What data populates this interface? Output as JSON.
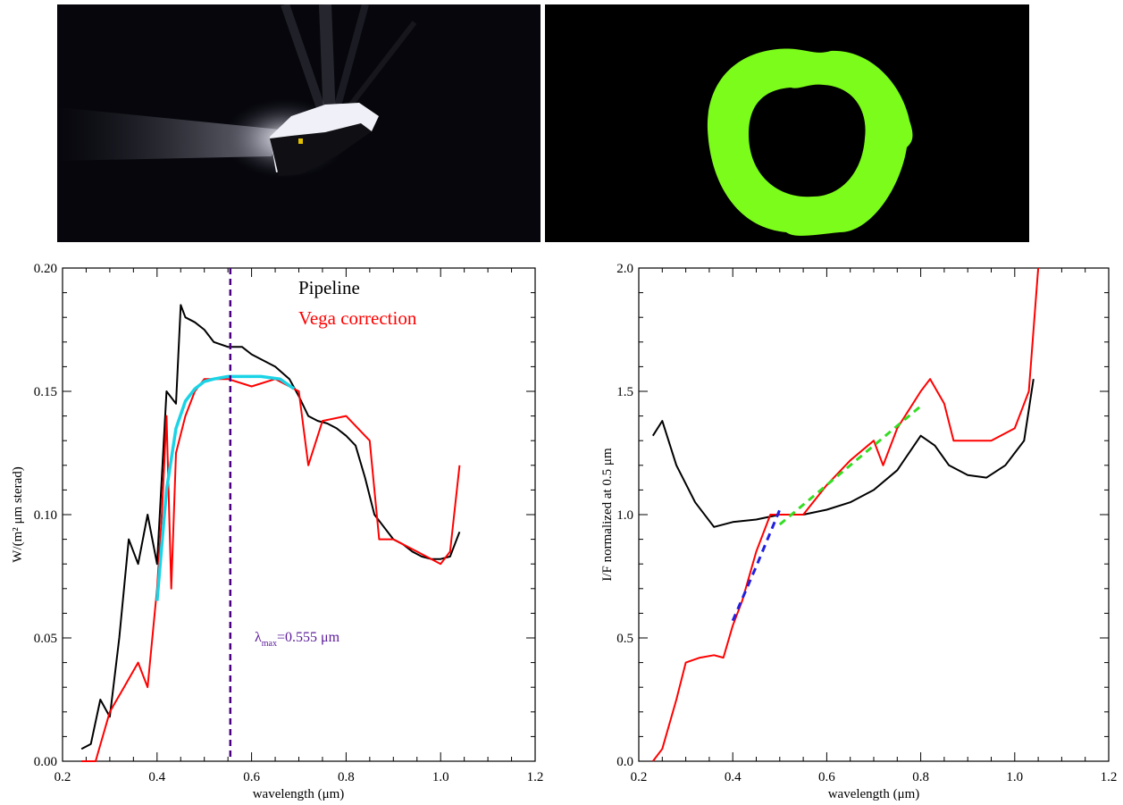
{
  "images": {
    "left_desc": "comet-nucleus-image",
    "right_desc": "annulus-mask-image",
    "mask_color": "#7cfc1a"
  },
  "chart_data": [
    {
      "type": "line",
      "xlabel": "wavelength (μm)",
      "ylabel": "W/(m² μm sterad)",
      "xlim": [
        0.2,
        1.2
      ],
      "ylim": [
        0.0,
        0.2
      ],
      "xticks": [
        0.2,
        0.4,
        0.6,
        0.8,
        1.0,
        1.2
      ],
      "xtick_labels": [
        "0.2",
        "0.4",
        "0.6",
        "0.8",
        "1.0",
        "1.2"
      ],
      "yticks": [
        0.0,
        0.05,
        0.1,
        0.15,
        0.2
      ],
      "ytick_labels": [
        "0.00",
        "0.05",
        "0.10",
        "0.15",
        "0.20"
      ],
      "legend_position": "top-right",
      "series": [
        {
          "name": "Pipeline",
          "color": "#000000",
          "x": [
            0.24,
            0.26,
            0.28,
            0.3,
            0.32,
            0.34,
            0.36,
            0.38,
            0.4,
            0.42,
            0.44,
            0.45,
            0.46,
            0.48,
            0.5,
            0.52,
            0.55,
            0.58,
            0.6,
            0.62,
            0.65,
            0.68,
            0.7,
            0.72,
            0.74,
            0.76,
            0.78,
            0.8,
            0.82,
            0.84,
            0.86,
            0.88,
            0.9,
            0.92,
            0.94,
            0.96,
            0.98,
            1.0,
            1.02,
            1.04
          ],
          "y": [
            0.005,
            0.007,
            0.025,
            0.018,
            0.05,
            0.09,
            0.08,
            0.1,
            0.08,
            0.15,
            0.145,
            0.185,
            0.18,
            0.178,
            0.175,
            0.17,
            0.168,
            0.168,
            0.165,
            0.163,
            0.16,
            0.155,
            0.148,
            0.14,
            0.138,
            0.137,
            0.135,
            0.132,
            0.128,
            0.115,
            0.1,
            0.095,
            0.09,
            0.088,
            0.085,
            0.083,
            0.082,
            0.082,
            0.083,
            0.093
          ]
        },
        {
          "name": "Vega correction",
          "color": "#ff0000",
          "x": [
            0.24,
            0.27,
            0.3,
            0.33,
            0.36,
            0.38,
            0.4,
            0.41,
            0.42,
            0.43,
            0.44,
            0.46,
            0.48,
            0.5,
            0.55,
            0.6,
            0.65,
            0.7,
            0.72,
            0.75,
            0.8,
            0.85,
            0.87,
            0.9,
            0.95,
            1.0,
            1.02,
            1.04
          ],
          "y": [
            0.0,
            0.0,
            0.02,
            0.03,
            0.04,
            0.03,
            0.07,
            0.1,
            0.14,
            0.07,
            0.125,
            0.14,
            0.15,
            0.155,
            0.155,
            0.152,
            0.155,
            0.15,
            0.12,
            0.138,
            0.14,
            0.13,
            0.09,
            0.09,
            0.085,
            0.08,
            0.085,
            0.12
          ]
        },
        {
          "name": "",
          "color": "#1ad4e6",
          "x": [
            0.4,
            0.42,
            0.44,
            0.46,
            0.48,
            0.5,
            0.52,
            0.55,
            0.58,
            0.62,
            0.66,
            0.69
          ],
          "y": [
            0.065,
            0.11,
            0.135,
            0.146,
            0.151,
            0.154,
            0.155,
            0.156,
            0.156,
            0.156,
            0.155,
            0.151
          ]
        }
      ],
      "vline": {
        "x": 0.555,
        "color": "#4b0082"
      },
      "annotation": {
        "lambda": "λ",
        "sub": "max",
        "rest": "=0.555 μm",
        "color": "#5b1a9a"
      }
    },
    {
      "type": "line",
      "xlabel": "wavelength (μm)",
      "ylabel": "I/F normalized at 0.5 μm",
      "xlim": [
        0.2,
        1.2
      ],
      "ylim": [
        0.0,
        2.0
      ],
      "xticks": [
        0.2,
        0.4,
        0.6,
        0.8,
        1.0,
        1.2
      ],
      "xtick_labels": [
        "0.2",
        "0.4",
        "0.6",
        "0.8",
        "1.0",
        "1.2"
      ],
      "yticks": [
        0.0,
        0.5,
        1.0,
        1.5,
        2.0
      ],
      "ytick_labels": [
        "0.0",
        "0.5",
        "1.0",
        "1.5",
        "2.0"
      ],
      "series": [
        {
          "name": "",
          "color": "#000000",
          "x": [
            0.23,
            0.25,
            0.28,
            0.32,
            0.36,
            0.4,
            0.45,
            0.5,
            0.55,
            0.6,
            0.65,
            0.7,
            0.75,
            0.8,
            0.83,
            0.86,
            0.9,
            0.94,
            0.98,
            1.02,
            1.04
          ],
          "y": [
            1.32,
            1.38,
            1.2,
            1.05,
            0.95,
            0.97,
            0.98,
            1.0,
            1.0,
            1.02,
            1.05,
            1.1,
            1.18,
            1.32,
            1.28,
            1.2,
            1.16,
            1.15,
            1.2,
            1.3,
            1.55
          ]
        },
        {
          "name": "",
          "color": "#ff0000",
          "x": [
            0.23,
            0.25,
            0.28,
            0.3,
            0.33,
            0.36,
            0.38,
            0.4,
            0.42,
            0.45,
            0.48,
            0.5,
            0.55,
            0.6,
            0.65,
            0.7,
            0.72,
            0.75,
            0.8,
            0.82,
            0.85,
            0.87,
            0.9,
            0.95,
            1.0,
            1.03,
            1.05
          ],
          "y": [
            0.0,
            0.05,
            0.25,
            0.4,
            0.42,
            0.43,
            0.42,
            0.55,
            0.65,
            0.85,
            1.0,
            1.0,
            1.0,
            1.12,
            1.22,
            1.3,
            1.2,
            1.35,
            1.5,
            1.55,
            1.45,
            1.3,
            1.3,
            1.3,
            1.35,
            1.5,
            2.0
          ]
        },
        {
          "name": "",
          "color": "#2020e0",
          "dashed": true,
          "x": [
            0.4,
            0.45,
            0.5
          ],
          "y": [
            0.57,
            0.79,
            1.02
          ]
        },
        {
          "name": "",
          "color": "#33dd22",
          "dashed": true,
          "x": [
            0.5,
            0.6,
            0.7,
            0.8
          ],
          "y": [
            0.96,
            1.12,
            1.28,
            1.44
          ]
        }
      ]
    }
  ]
}
